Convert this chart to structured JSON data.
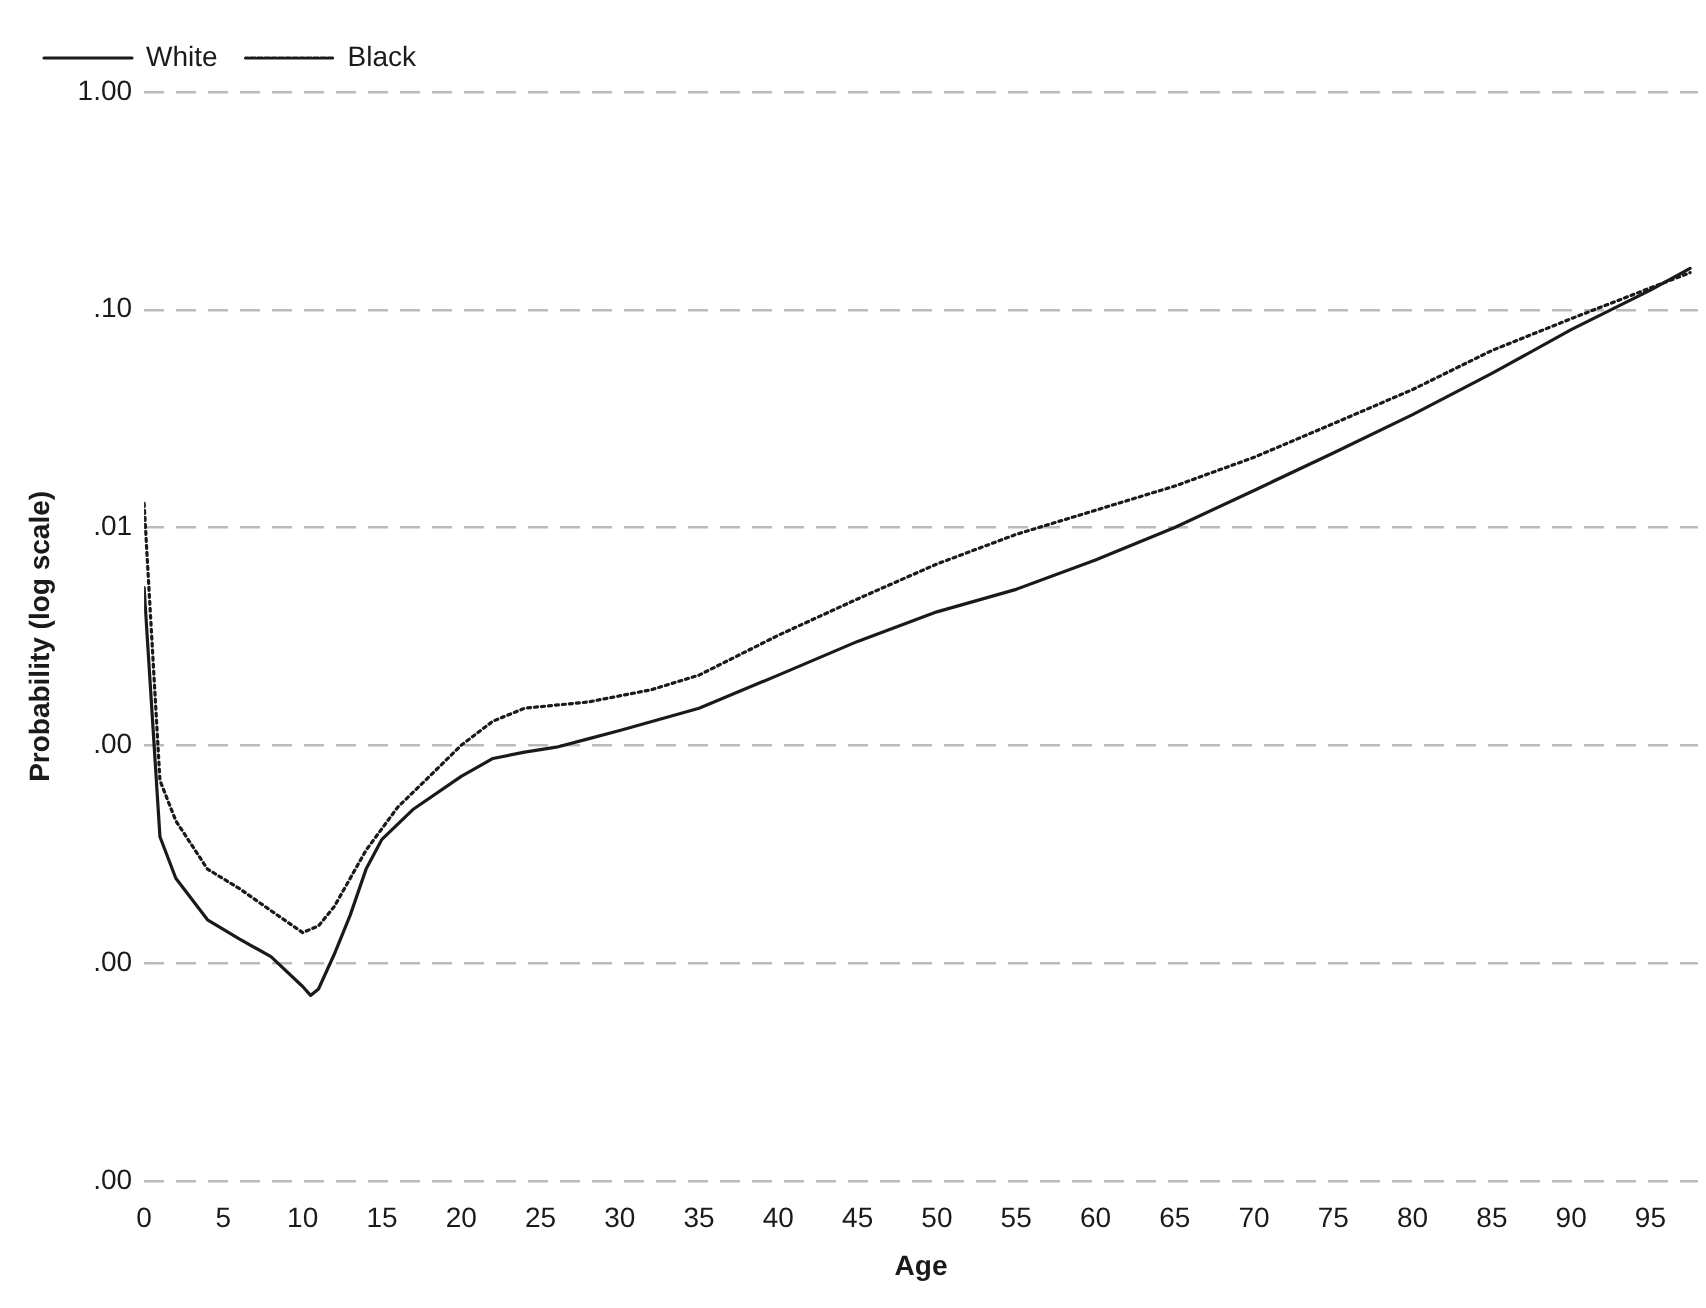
{
  "chart_data": {
    "type": "line",
    "xlabel": "Age",
    "ylabel": "Probability (log scale)",
    "log": "y",
    "grid": "y",
    "legend": "top left",
    "marker": "none",
    "xlim": [
      0,
      98
    ],
    "xticks": [
      0,
      5,
      10,
      15,
      20,
      25,
      30,
      35,
      40,
      45,
      50,
      55,
      60,
      65,
      70,
      75,
      80,
      85,
      90,
      95
    ],
    "ylim": [
      1e-05,
      1
    ],
    "yticks": [
      {
        "value": 1,
        "label": "1.00"
      },
      {
        "value": 0.1,
        "label": ".10"
      },
      {
        "value": 0.01,
        "label": ".01"
      },
      {
        "value": 0.001,
        "label": ".00"
      },
      {
        "value": 0.0001,
        "label": ".00"
      },
      {
        "value": 1e-05,
        "label": ".00"
      }
    ],
    "series": [
      {
        "name": "White",
        "color": "#1a1a1a",
        "line_style": "solid",
        "x": [
          0,
          1,
          2,
          4,
          6,
          8,
          10,
          10.5,
          11,
          12,
          13,
          14,
          15,
          17,
          20,
          22,
          24,
          26,
          28,
          30,
          35,
          40,
          45,
          50,
          55,
          60,
          65,
          70,
          75,
          80,
          85,
          90,
          95,
          97.5
        ],
        "values": [
          0.0053,
          0.00038,
          0.000245,
          0.000158,
          0.000129,
          0.000107,
          7.8e-05,
          7.1e-05,
          7.6e-05,
          0.00011,
          0.000166,
          0.00027,
          0.00037,
          0.00051,
          0.00072,
          0.00087,
          0.00093,
          0.00098,
          0.00107,
          0.00117,
          0.00148,
          0.0021,
          0.003,
          0.0041,
          0.0052,
          0.0071,
          0.01,
          0.0148,
          0.022,
          0.033,
          0.051,
          0.081,
          0.123,
          0.155
        ]
      },
      {
        "name": "Black",
        "color": "#1a1a1a",
        "line_style": "dotted",
        "x": [
          0,
          1,
          2,
          4,
          6,
          8,
          10,
          11,
          12,
          14,
          16,
          18,
          20,
          22,
          24,
          28,
          32,
          35,
          40,
          45,
          50,
          55,
          60,
          65,
          70,
          75,
          80,
          85,
          90,
          95,
          97.5
        ],
        "values": [
          0.0129,
          0.00069,
          0.00045,
          0.00027,
          0.00022,
          0.000174,
          0.000138,
          0.000148,
          0.000182,
          0.00033,
          0.00052,
          0.00072,
          0.001,
          0.00129,
          0.00148,
          0.00158,
          0.0018,
          0.0021,
          0.0032,
          0.0047,
          0.0068,
          0.0093,
          0.012,
          0.0155,
          0.021,
          0.03,
          0.043,
          0.065,
          0.091,
          0.126,
          0.148
        ]
      }
    ]
  }
}
